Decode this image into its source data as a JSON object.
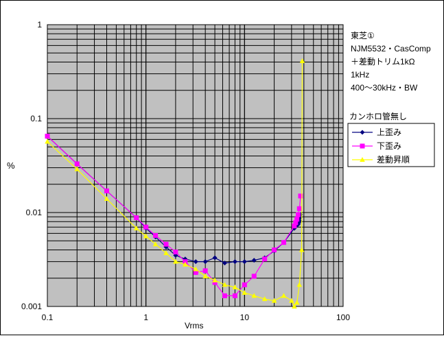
{
  "chart_data": {
    "type": "line",
    "xlabel": "Vrms",
    "ylabel": "%",
    "xscale": "log",
    "yscale": "log",
    "xlim": [
      0.1,
      100
    ],
    "ylim": [
      0.001,
      1
    ],
    "x_ticks": [
      {
        "v": 0.1,
        "label": "0.1"
      },
      {
        "v": 1,
        "label": "1"
      },
      {
        "v": 10,
        "label": "10"
      },
      {
        "v": 100,
        "label": "100"
      }
    ],
    "y_ticks": [
      {
        "v": 1,
        "label": "1"
      },
      {
        "v": 0.1,
        "label": "0.1"
      },
      {
        "v": 0.01,
        "label": "0.01"
      },
      {
        "v": 0.001,
        "label": "0.001"
      }
    ],
    "grid": true,
    "plot_background": "#c0c0c0",
    "notes": [
      "東芝①",
      "NJM5532・CasComp",
      "＋差動トリム1kΩ",
      "1kHz",
      "400〜30kHz・BW"
    ],
    "legend_title": "カンホロ管無し",
    "legend_position": "right",
    "series": [
      {
        "name": "上歪み",
        "color": "#000080",
        "marker": "diamond",
        "x": [
          0.1,
          0.2,
          0.4,
          0.8,
          1.0,
          1.25,
          1.6,
          2.0,
          2.5,
          3.2,
          4.0,
          5.0,
          6.3,
          8.0,
          10.0,
          12.5,
          16.0,
          20.0,
          25.0,
          32.0,
          33.0,
          34.0,
          35.0,
          35.5,
          36.0,
          36.5,
          37.0
        ],
        "y": [
          0.065,
          0.033,
          0.017,
          0.0088,
          0.0068,
          0.0055,
          0.0043,
          0.0035,
          0.0032,
          0.003,
          0.003,
          0.0033,
          0.0029,
          0.003,
          0.003,
          0.0031,
          0.0033,
          0.0039,
          0.0048,
          0.0068,
          0.0071,
          0.0073,
          0.0075,
          0.0078,
          0.0082,
          0.0088,
          0.0095
        ]
      },
      {
        "name": "下歪み",
        "color": "#ff00ff",
        "marker": "square",
        "x": [
          0.1,
          0.2,
          0.4,
          0.8,
          1.0,
          1.25,
          1.6,
          2.0,
          2.5,
          3.2,
          4.0,
          5.0,
          6.3,
          8.0,
          10.0,
          12.5,
          16.0,
          20.0,
          25.0,
          32.0,
          33.0,
          34.0,
          35.0,
          36.0,
          37.0
        ],
        "y": [
          0.065,
          0.033,
          0.017,
          0.0088,
          0.007,
          0.0057,
          0.0046,
          0.0038,
          0.003,
          0.0023,
          0.0024,
          0.0018,
          0.0013,
          0.0013,
          0.0017,
          0.0021,
          0.0032,
          0.004,
          0.0048,
          0.0072,
          0.0078,
          0.0085,
          0.0095,
          0.011,
          0.015
        ]
      },
      {
        "name": "差動昇順",
        "color": "#ffff00",
        "marker": "triangle",
        "x": [
          0.1,
          0.2,
          0.4,
          0.8,
          1.0,
          1.25,
          1.6,
          2.0,
          2.5,
          3.2,
          4.0,
          5.0,
          6.3,
          8.0,
          10.0,
          12.5,
          16.0,
          20.0,
          25.0,
          30.0,
          32.0,
          34.0,
          36.0,
          38.0,
          38.5
        ],
        "y": [
          0.057,
          0.029,
          0.014,
          0.0068,
          0.0056,
          0.0046,
          0.0037,
          0.003,
          0.0028,
          0.0025,
          0.0021,
          0.0019,
          0.0017,
          0.0016,
          0.0014,
          0.0013,
          0.0012,
          0.00115,
          0.0013,
          0.00115,
          0.001,
          0.0011,
          0.0017,
          0.004,
          0.41
        ]
      }
    ]
  }
}
